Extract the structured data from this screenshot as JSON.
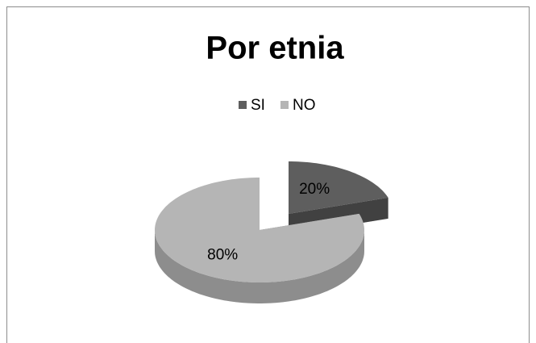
{
  "chart_data": {
    "type": "pie",
    "title": "Por etnia",
    "categories": [
      "SI",
      "NO"
    ],
    "values": [
      20,
      80
    ],
    "value_labels": [
      "20%",
      "80%"
    ],
    "colors": [
      "#5e5e5e",
      "#b5b5b5"
    ],
    "legend": "top"
  }
}
